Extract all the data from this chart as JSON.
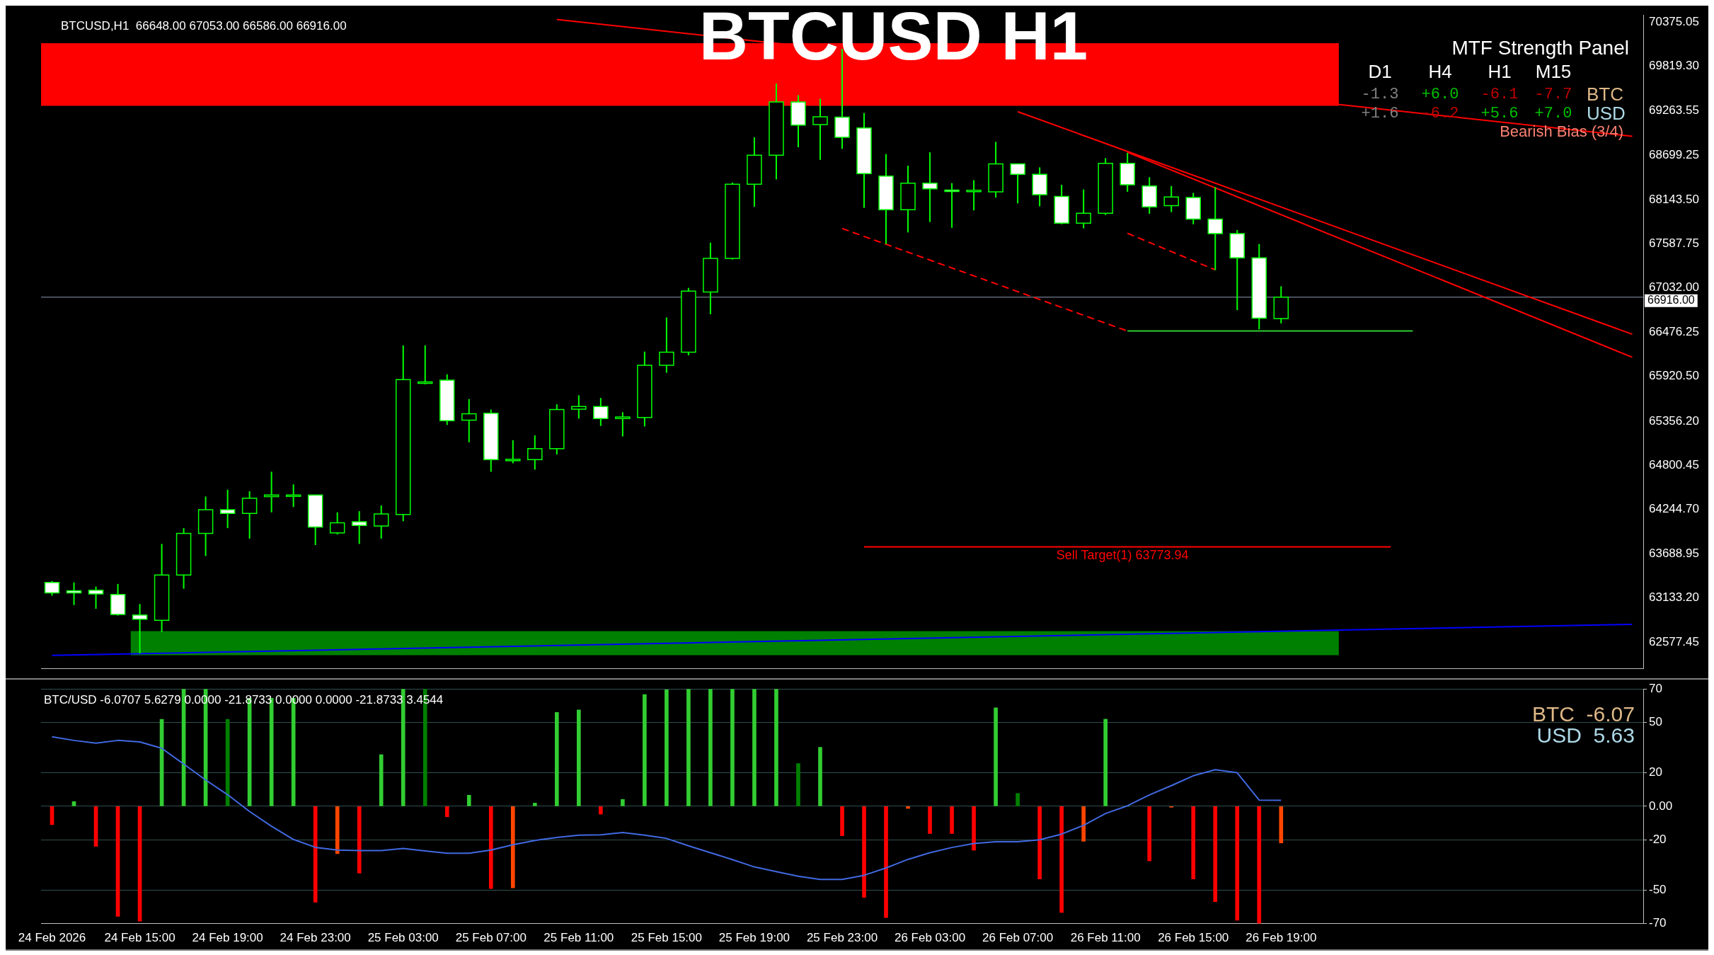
{
  "chart_data": [
    {
      "type": "candlestick",
      "title": "BTCUSD H1",
      "subtitle": "BTCUSD,H1  66648.00 67053.00 66586.00 66916.00",
      "categories": [
        null,
        null,
        null,
        null,
        null,
        null,
        null,
        null,
        null,
        null,
        null,
        null,
        null,
        null,
        null,
        null,
        null,
        null,
        null,
        null,
        null,
        null,
        null,
        null,
        null,
        null,
        null,
        null,
        null,
        null,
        null,
        null,
        null,
        null,
        null,
        null,
        null,
        null,
        null,
        null,
        null,
        null,
        null,
        null,
        null,
        null,
        null,
        null,
        null,
        null,
        null,
        null,
        null,
        null,
        null,
        null,
        null,
        null,
        null,
        null,
        null,
        null,
        null,
        null,
        null,
        null,
        null,
        null,
        null,
        null,
        null,
        null,
        null
      ],
      "ohlc": [
        [
          63328,
          63345,
          63160,
          63195
        ],
        [
          63222,
          63328,
          63043,
          63195
        ],
        [
          63228,
          63275,
          62997,
          63182
        ],
        [
          63176,
          63308,
          62910,
          62924
        ],
        [
          62917,
          63056,
          62433,
          62864
        ],
        [
          62851,
          63812,
          62705,
          63421
        ],
        [
          63421,
          64011,
          63248,
          63944
        ],
        [
          63944,
          64408,
          63659,
          64242
        ],
        [
          64242,
          64494,
          64011,
          64196
        ],
        [
          64196,
          64474,
          63878,
          64388
        ],
        [
          64408,
          64720,
          64209,
          64428
        ],
        [
          64420,
          64561,
          64276,
          64428
        ],
        [
          64428,
          64428,
          63798,
          64024
        ],
        [
          63951,
          64209,
          63931,
          64077
        ],
        [
          64090,
          64223,
          63812,
          64044
        ],
        [
          64037,
          64296,
          63878,
          64189
        ],
        [
          64183,
          66310,
          64097,
          65879
        ],
        [
          65846,
          66310,
          65820,
          65850
        ],
        [
          65873,
          65946,
          65309,
          65362
        ],
        [
          65369,
          65634,
          65091,
          65449
        ],
        [
          65455,
          65502,
          64720,
          64872
        ],
        [
          64872,
          65117,
          64826,
          64876
        ],
        [
          64872,
          65177,
          64746,
          65011
        ],
        [
          65011,
          65568,
          64938,
          65502
        ],
        [
          65508,
          65681,
          65389,
          65541
        ],
        [
          65541,
          65648,
          65296,
          65389
        ],
        [
          65389,
          65469,
          65164,
          65409
        ],
        [
          65402,
          66231,
          65290,
          66058
        ],
        [
          66058,
          66661,
          65966,
          66224
        ],
        [
          66224,
          67033,
          66184,
          66993
        ],
        [
          66980,
          67602,
          66701,
          67404
        ],
        [
          67404,
          68358,
          67390,
          68338
        ],
        [
          68338,
          68928,
          68053,
          68702
        ],
        [
          68702,
          69604,
          68398,
          69372
        ],
        [
          69372,
          69458,
          68802,
          69080
        ],
        [
          69087,
          69412,
          68643,
          69186
        ],
        [
          69180,
          70041,
          68782,
          68928
        ],
        [
          69045,
          69233,
          68040,
          68471
        ],
        [
          68439,
          68716,
          67585,
          68016
        ],
        [
          68016,
          68570,
          67731,
          68351
        ],
        [
          68351,
          68738,
          67862,
          68278
        ],
        [
          68264,
          68351,
          67789,
          68260
        ],
        [
          68256,
          68388,
          68008,
          68262
        ],
        [
          68242,
          68870,
          68169,
          68592
        ],
        [
          68592,
          68592,
          68096,
          68461
        ],
        [
          68461,
          68549,
          68059,
          68205
        ],
        [
          68184,
          68330,
          67833,
          67848
        ],
        [
          67848,
          68271,
          67782,
          67972
        ],
        [
          67972,
          68665,
          67950,
          68600
        ],
        [
          68600,
          68731,
          68242,
          68330
        ],
        [
          68315,
          68425,
          67965,
          68052
        ],
        [
          68067,
          68315,
          67986,
          68176
        ],
        [
          68169,
          68228,
          67833,
          67899
        ],
        [
          67899,
          68301,
          67256,
          67716
        ],
        [
          67716,
          67760,
          66753,
          67410
        ],
        [
          67410,
          67585,
          66512,
          66651
        ],
        [
          66648,
          67053,
          66586,
          66916
        ],
        null,
        null,
        null,
        null,
        null,
        null,
        null,
        null,
        null,
        null,
        null,
        null,
        null,
        null,
        null,
        null
      ],
      "series": [
        {
          "type": "line",
          "color": "#0000ff",
          "values": [
            62410,
            null,
            null,
            null,
            null,
            null,
            null,
            null,
            null,
            null,
            null,
            null,
            null,
            null,
            null,
            null,
            null,
            null,
            null,
            null,
            null,
            null,
            null,
            null,
            null,
            null,
            null,
            null,
            null,
            null,
            null,
            null,
            null,
            null,
            null,
            null,
            null,
            null,
            null,
            null,
            null,
            null,
            null,
            null,
            null,
            null,
            null,
            null,
            null,
            null,
            null,
            null,
            null,
            null,
            null,
            null,
            null,
            null,
            null,
            null,
            null,
            null,
            null,
            null,
            null,
            null,
            null,
            null,
            null,
            null,
            null,
            null,
            62800
          ]
        },
        {
          "type": "line",
          "color": "#ff0000",
          "values": [
            null,
            null,
            null,
            null,
            null,
            null,
            null,
            null,
            null,
            null,
            null,
            null,
            null,
            null,
            null,
            null,
            null,
            null,
            null,
            null,
            null,
            null,
            null,
            70410,
            null,
            null,
            null,
            null,
            null,
            null,
            null,
            null,
            null,
            null,
            null,
            null,
            null,
            null,
            null,
            null,
            null,
            null,
            null,
            null,
            null,
            null,
            null,
            null,
            null,
            null,
            null,
            null,
            null,
            null,
            null,
            null,
            null,
            null,
            null,
            null,
            null,
            null,
            null,
            null,
            null,
            null,
            null,
            null,
            null,
            null,
            null,
            null,
            68940
          ]
        },
        {
          "type": "line",
          "color": "#ff0000",
          "values": [
            null,
            null,
            null,
            null,
            null,
            null,
            null,
            null,
            null,
            null,
            null,
            null,
            null,
            null,
            null,
            null,
            null,
            null,
            null,
            null,
            null,
            null,
            null,
            null,
            null,
            null,
            null,
            null,
            null,
            null,
            null,
            null,
            null,
            null,
            null,
            null,
            null,
            null,
            null,
            null,
            null,
            null,
            null,
            null,
            69250,
            null,
            null,
            null,
            null,
            null,
            null,
            null,
            null,
            null,
            null,
            null,
            null,
            null,
            null,
            null,
            null,
            null,
            null,
            null,
            null,
            null,
            null,
            null,
            null,
            null,
            null,
            null,
            66450
          ]
        },
        {
          "type": "line",
          "color": "#ff0000",
          "values": [
            null,
            null,
            null,
            null,
            null,
            null,
            null,
            null,
            null,
            null,
            null,
            null,
            null,
            null,
            null,
            null,
            null,
            null,
            null,
            null,
            null,
            null,
            null,
            null,
            null,
            null,
            null,
            null,
            null,
            null,
            null,
            null,
            null,
            null,
            null,
            null,
            null,
            null,
            null,
            null,
            null,
            null,
            null,
            null,
            null,
            null,
            null,
            null,
            null,
            68740,
            null,
            null,
            null,
            null,
            null,
            null,
            null,
            null,
            null,
            null,
            null,
            null,
            null,
            null,
            null,
            null,
            null,
            null,
            null,
            null,
            null,
            null,
            66160
          ]
        },
        {
          "type": "line",
          "color": "#ff0000",
          "line_style": "dashed",
          "values": [
            null,
            null,
            null,
            null,
            null,
            null,
            null,
            null,
            null,
            null,
            null,
            null,
            null,
            null,
            null,
            null,
            null,
            null,
            null,
            null,
            null,
            null,
            null,
            null,
            null,
            null,
            null,
            null,
            null,
            null,
            null,
            null,
            null,
            null,
            null,
            null,
            67780,
            null,
            null,
            null,
            null,
            null,
            null,
            null,
            null,
            null,
            null,
            null,
            null,
            66490,
            null,
            null,
            null,
            null,
            null,
            null,
            null,
            null,
            null,
            null,
            null,
            null,
            null,
            null,
            null,
            null,
            null,
            null,
            null,
            null,
            null,
            null,
            null
          ]
        },
        {
          "type": "line",
          "color": "#ff0000",
          "line_style": "dashed",
          "values": [
            null,
            null,
            null,
            null,
            null,
            null,
            null,
            null,
            null,
            null,
            null,
            null,
            null,
            null,
            null,
            null,
            null,
            null,
            null,
            null,
            null,
            null,
            null,
            null,
            null,
            null,
            null,
            null,
            null,
            null,
            null,
            null,
            null,
            null,
            null,
            null,
            null,
            null,
            null,
            null,
            null,
            null,
            null,
            null,
            null,
            null,
            null,
            null,
            null,
            67720,
            null,
            null,
            null,
            67260,
            null,
            null,
            null,
            null,
            null,
            null,
            null,
            null,
            null,
            null,
            null,
            null,
            null,
            null,
            null,
            null,
            null,
            null,
            null
          ]
        },
        {
          "type": "line",
          "color": "#32cd32",
          "values": [
            null,
            null,
            null,
            null,
            null,
            null,
            null,
            null,
            null,
            null,
            null,
            null,
            null,
            null,
            null,
            null,
            null,
            null,
            null,
            null,
            null,
            null,
            null,
            null,
            null,
            null,
            null,
            null,
            null,
            null,
            null,
            null,
            null,
            null,
            null,
            null,
            null,
            null,
            null,
            null,
            null,
            null,
            null,
            null,
            null,
            null,
            null,
            null,
            null,
            66490,
            null,
            null,
            null,
            null,
            null,
            null,
            null,
            null,
            null,
            null,
            null,
            null,
            66490,
            null,
            null,
            null,
            null,
            null,
            null,
            null,
            null,
            null,
            null
          ]
        },
        {
          "type": "line",
          "color": "#ff0000",
          "values": [
            null,
            null,
            null,
            null,
            null,
            null,
            null,
            null,
            null,
            null,
            null,
            null,
            null,
            null,
            null,
            null,
            null,
            null,
            null,
            null,
            null,
            null,
            null,
            null,
            null,
            null,
            null,
            null,
            null,
            null,
            null,
            null,
            null,
            null,
            null,
            null,
            null,
            63773.94,
            null,
            null,
            null,
            null,
            null,
            null,
            null,
            null,
            null,
            null,
            null,
            null,
            null,
            null,
            null,
            null,
            null,
            null,
            null,
            null,
            null,
            null,
            null,
            63773.94,
            null,
            null,
            null,
            null,
            null,
            null,
            null,
            null,
            null,
            null,
            null
          ]
        }
      ],
      "ylim": [
        62240,
        70466
      ],
      "yticks": [
        {
          "value": 70375.05,
          "label": "70375.05"
        },
        {
          "value": 69819.3,
          "label": "69819.30"
        },
        {
          "value": 69263.55,
          "label": "69263.55"
        },
        {
          "value": 68699.25,
          "label": "68699.25"
        },
        {
          "value": 68143.5,
          "label": "68143.50"
        },
        {
          "value": 67587.75,
          "label": "67587.75"
        },
        {
          "value": 67032,
          "label": "67032.00"
        },
        {
          "value": 66476.25,
          "label": "66476.25"
        },
        {
          "value": 65920.5,
          "label": "65920.50"
        },
        {
          "value": 65356.2,
          "label": "65356.20"
        },
        {
          "value": 64800.45,
          "label": "64800.45"
        },
        {
          "value": 64244.7,
          "label": "64244.70"
        },
        {
          "value": 63688.95,
          "label": "63688.95"
        },
        {
          "value": 63133.2,
          "label": "63133.20"
        },
        {
          "value": 62577.45,
          "label": "62577.45"
        }
      ],
      "tick_labels": "y",
      "bands": [
        {
          "axis": "y",
          "from": 69323,
          "to": 70111,
          "color": "#ff0000"
        },
        {
          "axis": "y",
          "from": 62412,
          "to": 62715,
          "color": "#008000"
        }
      ],
      "ref_lines": [
        {
          "axis": "y",
          "value": 66916,
          "label": "66916.00",
          "color": "#8f9bb3"
        }
      ],
      "annotations": [
        "MTF Strength Panel",
        "D1",
        "H4",
        "H1",
        "M15",
        "-1.3",
        "+6.0",
        "-6.1",
        "-7.7",
        "BTC",
        "+1.6",
        "-6.2",
        "+5.6",
        "+7.0",
        "USD",
        "Bearish Bias (3/4)",
        {
          "text": "Sell Target(1) 63773.94",
          "y": 63773.94
        }
      ]
    },
    {
      "type": "bar",
      "subtitle": "BTC/USD -6.0707 5.6279 0.0000 -21.8733 0.0000 0.0000 -21.8733 3.4544",
      "categories": [
        "24 Feb 2026",
        null,
        null,
        null,
        "24 Feb 15:00",
        null,
        null,
        null,
        "24 Feb 19:00",
        null,
        null,
        null,
        "24 Feb 23:00",
        null,
        null,
        null,
        "25 Feb 03:00",
        null,
        null,
        null,
        "25 Feb 07:00",
        null,
        null,
        null,
        "25 Feb 11:00",
        null,
        null,
        null,
        "25 Feb 15:00",
        null,
        null,
        null,
        "25 Feb 19:00",
        null,
        null,
        null,
        "25 Feb 23:00",
        null,
        null,
        null,
        "26 Feb 03:00",
        null,
        null,
        null,
        "26 Feb 07:00",
        null,
        null,
        null,
        "26 Feb 11:00",
        null,
        null,
        null,
        "26 Feb 15:00",
        null,
        null,
        null,
        "26 Feb 19:00",
        null,
        null,
        null,
        null,
        null,
        null,
        null,
        null,
        null,
        null,
        null,
        null,
        null,
        null,
        null,
        null
      ],
      "series": [
        {
          "type": "bar",
          "values": [
            -11.0,
            2.8,
            -23.9,
            -65.7,
            -68.6,
            51.9,
            70,
            70,
            51.9,
            64.5,
            64.5,
            64.5,
            -57.2,
            -28.3,
            -39.9,
            30.8,
            70,
            70,
            -6.3,
            6.6,
            -49.1,
            -48.7,
            1.9,
            56.0,
            57.5,
            -4.7,
            4.1,
            66.7,
            69.5,
            70,
            70,
            70,
            70,
            70,
            25.5,
            35.2,
            -17.6,
            -54.4,
            -66.4,
            -1.3,
            -16.3,
            -16.3,
            -26.2,
            58.8,
            7.7,
            -43.4,
            -63.4,
            -20.9,
            52.0,
            0,
            -32.6,
            -0.6,
            -43.4,
            -56.9,
            -68.0,
            -70,
            -21.9,
            null,
            null,
            null,
            null,
            null,
            null,
            null,
            null,
            null,
            null,
            null,
            null,
            null,
            null,
            null,
            null
          ],
          "colors": [
            "#ff0000",
            "#32cd32",
            "#ff0000",
            "#ff0000",
            "#ff0000",
            "#32cd32",
            "#32cd32",
            "#32cd32",
            "#008000",
            "#32cd32",
            "#32cd32",
            "#32cd32",
            "#ff0000",
            "#ff4500",
            "#ff0000",
            "#32cd32",
            "#32cd32",
            "#008000",
            "#ff0000",
            "#32cd32",
            "#ff0000",
            "#ff4500",
            "#32cd32",
            "#32cd32",
            "#32cd32",
            "#ff0000",
            "#32cd32",
            "#32cd32",
            "#32cd32",
            "#32cd32",
            "#32cd32",
            "#32cd32",
            "#32cd32",
            "#32cd32",
            "#008000",
            "#32cd32",
            "#ff0000",
            "#ff0000",
            "#ff0000",
            "#ff4500",
            "#ff0000",
            "#ff0000",
            "#ff0000",
            "#32cd32",
            "#008000",
            "#ff0000",
            "#ff0000",
            "#ff4500",
            "#32cd32",
            "#32cd32",
            "#ff0000",
            "#ff4500",
            "#ff0000",
            "#ff0000",
            "#ff0000",
            "#ff0000",
            "#ff4500",
            null,
            null,
            null,
            null,
            null,
            null,
            null,
            null,
            null,
            null,
            null,
            null,
            null,
            null,
            null,
            null
          ]
        },
        {
          "type": "line",
          "color": "#4169e1",
          "values": [
            41.5,
            39.3,
            37.7,
            39.3,
            38.4,
            34.6,
            25.2,
            15.7,
            6.9,
            -3.1,
            -11.9,
            -19.8,
            -24.5,
            -26.1,
            -26.4,
            -26.4,
            -25.2,
            -26.7,
            -28.0,
            -28.0,
            -26.1,
            -23.0,
            -20.4,
            -18.6,
            -17.3,
            -17.0,
            -15.7,
            -17.3,
            -19.2,
            -23.6,
            -27.7,
            -31.8,
            -36.2,
            -39.0,
            -41.8,
            -43.7,
            -43.7,
            -41.2,
            -36.8,
            -31.7,
            -27.7,
            -24.6,
            -22.2,
            -21.2,
            -21.2,
            -20.0,
            -16.6,
            -11.4,
            -4.3,
            0.3,
            6.8,
            12.3,
            18.2,
            21.8,
            20.0,
            3.7,
            3.5,
            null,
            null,
            null,
            null,
            null,
            null,
            null,
            null,
            null,
            null,
            null,
            null,
            null,
            null,
            null,
            null
          ]
        }
      ],
      "ylim": [
        -70,
        70
      ],
      "yticks": [
        70,
        50,
        20,
        {
          "value": 0,
          "label": "0.00"
        },
        -20,
        -50,
        -70
      ],
      "grid": "y",
      "annotations": [
        "BTC  -6.07",
        "USD  5.63"
      ]
    }
  ]
}
